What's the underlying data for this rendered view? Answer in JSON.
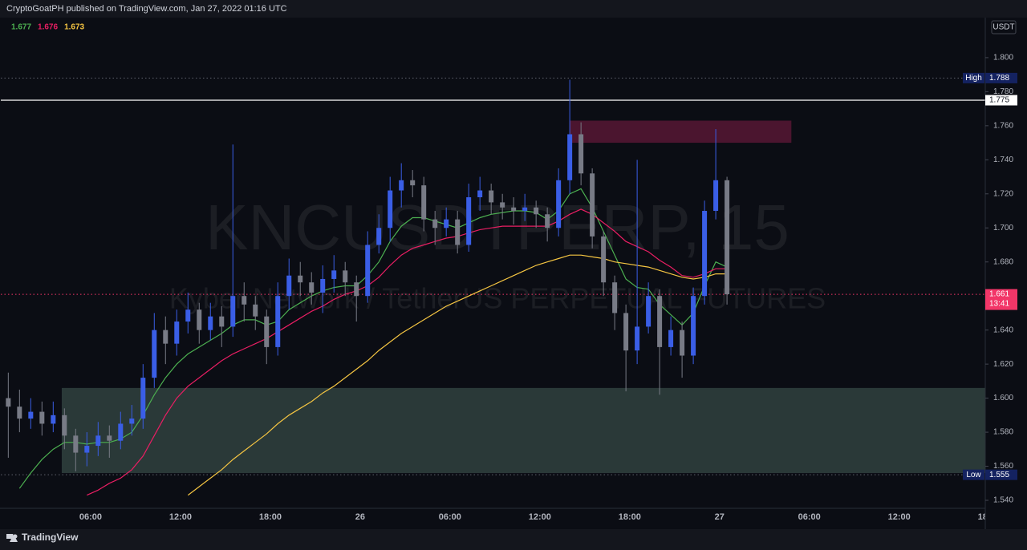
{
  "header": {
    "text": "CryptoGoatPH published on TradingView.com, Jan 27, 2022 01:16 UTC"
  },
  "footer": {
    "brand": "TradingView"
  },
  "chart_data": {
    "type": "candlestick",
    "symbol": "KNCUSDTPERP, 15",
    "description": "Kyber Network / TetherUS PERPETUAL FUTURES",
    "currency": "USDT",
    "up_color": "#3a5ee6",
    "down_color": "#787b86",
    "grid": false,
    "xlim": [
      0,
      65.75
    ],
    "xticks": [
      {
        "value": 6,
        "label": "06:00"
      },
      {
        "value": 12,
        "label": "12:00"
      },
      {
        "value": 18,
        "label": "18:00"
      },
      {
        "value": 24,
        "label": "26"
      },
      {
        "value": 30,
        "label": "06:00"
      },
      {
        "value": 36,
        "label": "12:00"
      },
      {
        "value": 42,
        "label": "18:00"
      },
      {
        "value": 48,
        "label": "27"
      },
      {
        "value": 54,
        "label": "06:00"
      },
      {
        "value": 60,
        "label": "12:00"
      },
      {
        "value": 66,
        "label": "18:00"
      }
    ],
    "ylim": [
      1.5353,
      1.8235
    ],
    "yticks": [
      {
        "value": 1.54,
        "label": "1.540"
      },
      {
        "value": 1.56,
        "label": "1.560"
      },
      {
        "value": 1.58,
        "label": "1.580"
      },
      {
        "value": 1.6,
        "label": "1.600"
      },
      {
        "value": 1.62,
        "label": "1.620"
      },
      {
        "value": 1.64,
        "label": "1.640"
      },
      {
        "value": 1.66,
        "label": "1.660"
      },
      {
        "value": 1.68,
        "label": "1.680"
      },
      {
        "value": 1.7,
        "label": "1.700"
      },
      {
        "value": 1.72,
        "label": "1.720"
      },
      {
        "value": 1.74,
        "label": "1.740"
      },
      {
        "value": 1.76,
        "label": "1.760"
      },
      {
        "value": 1.78,
        "label": "1.780"
      },
      {
        "value": 1.8,
        "label": "1.800"
      }
    ],
    "x": [
      0.5,
      1.25,
      2,
      2.75,
      3.5,
      4.25,
      5,
      5.75,
      6.5,
      7.25,
      8,
      8.75,
      9.5,
      10.25,
      11,
      11.75,
      12.5,
      13.25,
      14,
      14.75,
      15.5,
      16.25,
      17,
      17.75,
      18.5,
      19.25,
      20,
      20.75,
      21.5,
      22.25,
      23,
      23.75,
      24.5,
      25.25,
      26,
      26.75,
      27.5,
      28.25,
      29,
      29.75,
      30.5,
      31.25,
      32,
      32.75,
      33.5,
      34.25,
      35,
      35.75,
      36.5,
      37.25,
      38,
      38.75,
      39.5,
      40.25,
      41,
      41.75,
      42.5,
      43.25,
      44,
      44.75,
      45.5,
      46.25,
      47,
      47.75,
      48.5
    ],
    "open": [
      1.6,
      1.595,
      1.588,
      1.592,
      1.585,
      1.59,
      1.578,
      1.568,
      1.572,
      1.578,
      1.575,
      1.585,
      1.588,
      1.612,
      1.64,
      1.632,
      1.645,
      1.652,
      1.64,
      1.648,
      1.642,
      1.66,
      1.655,
      1.648,
      1.63,
      1.66,
      1.672,
      1.668,
      1.662,
      1.67,
      1.675,
      1.668,
      1.66,
      1.69,
      1.7,
      1.722,
      1.728,
      1.725,
      1.705,
      1.7,
      1.705,
      1.69,
      1.718,
      1.722,
      1.715,
      1.712,
      1.71,
      1.712,
      1.708,
      1.7,
      1.728,
      1.755,
      1.732,
      1.695,
      1.668,
      1.65,
      1.628,
      1.642,
      1.66,
      1.63,
      1.64,
      1.625,
      1.66,
      1.71,
      1.728
    ],
    "high": [
      1.615,
      1.605,
      1.6,
      1.598,
      1.598,
      1.594,
      1.582,
      1.58,
      1.586,
      1.584,
      1.592,
      1.596,
      1.62,
      1.65,
      1.648,
      1.652,
      1.662,
      1.656,
      1.656,
      1.654,
      1.749,
      1.668,
      1.66,
      1.652,
      1.668,
      1.682,
      1.68,
      1.674,
      1.678,
      1.684,
      1.68,
      1.672,
      1.698,
      1.708,
      1.73,
      1.738,
      1.734,
      1.73,
      1.71,
      1.712,
      1.71,
      1.726,
      1.73,
      1.726,
      1.72,
      1.718,
      1.72,
      1.716,
      1.712,
      1.735,
      1.787,
      1.762,
      1.735,
      1.698,
      1.672,
      1.655,
      1.74,
      1.668,
      1.664,
      1.648,
      1.645,
      1.665,
      1.716,
      1.758,
      1.73
    ],
    "low": [
      1.565,
      1.58,
      1.582,
      1.578,
      1.58,
      1.57,
      1.557,
      1.56,
      1.566,
      1.565,
      1.57,
      1.578,
      1.582,
      1.606,
      1.62,
      1.625,
      1.638,
      1.632,
      1.634,
      1.63,
      1.636,
      1.645,
      1.64,
      1.62,
      1.625,
      1.652,
      1.66,
      1.655,
      1.65,
      1.662,
      1.66,
      1.645,
      1.656,
      1.685,
      1.692,
      1.712,
      1.718,
      1.698,
      1.69,
      1.695,
      1.685,
      1.686,
      1.71,
      1.708,
      1.705,
      1.702,
      1.704,
      1.7,
      1.692,
      1.695,
      1.72,
      1.725,
      1.688,
      1.66,
      1.64,
      1.604,
      1.62,
      1.638,
      1.602,
      1.625,
      1.612,
      1.62,
      1.655,
      1.705,
      1.655
    ],
    "close": [
      1.595,
      1.588,
      1.592,
      1.585,
      1.59,
      1.578,
      1.568,
      1.572,
      1.578,
      1.575,
      1.585,
      1.588,
      1.612,
      1.64,
      1.632,
      1.645,
      1.652,
      1.64,
      1.648,
      1.642,
      1.66,
      1.655,
      1.648,
      1.63,
      1.66,
      1.672,
      1.668,
      1.662,
      1.67,
      1.675,
      1.668,
      1.66,
      1.69,
      1.7,
      1.722,
      1.728,
      1.725,
      1.705,
      1.7,
      1.705,
      1.69,
      1.718,
      1.722,
      1.715,
      1.712,
      1.71,
      1.712,
      1.708,
      1.7,
      1.728,
      1.755,
      1.732,
      1.695,
      1.668,
      1.65,
      1.628,
      1.642,
      1.66,
      1.63,
      1.64,
      1.625,
      1.66,
      1.71,
      1.728,
      1.661
    ],
    "series": [
      {
        "color": "#4caf50",
        "values": [
          null,
          1.547,
          1.556,
          1.564,
          1.57,
          1.574,
          1.574,
          1.573,
          1.574,
          1.574,
          1.576,
          1.58,
          1.59,
          1.602,
          1.612,
          1.62,
          1.626,
          1.63,
          1.634,
          1.638,
          1.643,
          1.646,
          1.646,
          1.643,
          1.645,
          1.652,
          1.656,
          1.66,
          1.663,
          1.665,
          1.666,
          1.666,
          1.672,
          1.68,
          1.692,
          1.701,
          1.706,
          1.706,
          1.704,
          1.702,
          1.7,
          1.703,
          1.706,
          1.708,
          1.709,
          1.71,
          1.71,
          1.709,
          1.705,
          1.71,
          1.72,
          1.723,
          1.712,
          1.698,
          1.684,
          1.67,
          1.665,
          1.664,
          1.655,
          1.649,
          1.643,
          1.65,
          1.666,
          1.68,
          1.677
        ]
      },
      {
        "color": "#e91e63",
        "values": [
          null,
          null,
          null,
          null,
          null,
          null,
          null,
          1.543,
          1.546,
          1.55,
          1.553,
          1.558,
          1.566,
          1.578,
          1.59,
          1.6,
          1.607,
          1.612,
          1.617,
          1.622,
          1.626,
          1.629,
          1.632,
          1.635,
          1.639,
          1.643,
          1.647,
          1.651,
          1.654,
          1.658,
          1.661,
          1.663,
          1.666,
          1.671,
          1.678,
          1.684,
          1.688,
          1.69,
          1.692,
          1.694,
          1.695,
          1.697,
          1.699,
          1.7,
          1.701,
          1.701,
          1.701,
          1.701,
          1.701,
          1.704,
          1.708,
          1.711,
          1.708,
          1.703,
          1.698,
          1.692,
          1.689,
          1.686,
          1.681,
          1.677,
          1.672,
          1.671,
          1.673,
          1.676,
          1.676
        ]
      },
      {
        "color": "#f5c542",
        "values": [
          null,
          null,
          null,
          null,
          null,
          null,
          null,
          null,
          null,
          null,
          null,
          null,
          null,
          null,
          null,
          null,
          1.543,
          1.548,
          1.553,
          1.558,
          1.564,
          1.569,
          1.574,
          1.579,
          1.585,
          1.59,
          1.594,
          1.598,
          1.603,
          1.607,
          1.612,
          1.617,
          1.622,
          1.628,
          1.633,
          1.638,
          1.642,
          1.646,
          1.65,
          1.654,
          1.657,
          1.66,
          1.663,
          1.666,
          1.669,
          1.672,
          1.675,
          1.678,
          1.68,
          1.682,
          1.684,
          1.684,
          1.683,
          1.682,
          1.68,
          1.679,
          1.678,
          1.677,
          1.675,
          1.673,
          1.671,
          1.67,
          1.671,
          1.673,
          1.673
        ]
      }
    ],
    "zones": [
      {
        "x": [
          4.07,
          65.75
        ],
        "y": [
          1.556,
          1.606
        ],
        "color": "rgba(80,110,100,0.45)"
      },
      {
        "x": [
          37.98,
          52.8
        ],
        "y": [
          1.75,
          1.763
        ],
        "color": "rgba(130,30,70,0.55)"
      }
    ],
    "price_lines": [
      {
        "name": "High",
        "value": 1.788,
        "color": "#142260",
        "line_color": "#5d606b",
        "style": "dotted"
      },
      {
        "value": 1.775,
        "color": "#ffffff",
        "line_color": "#ffffff",
        "style": "solid"
      },
      {
        "value": 1.661,
        "color": "#f23668",
        "line_color": "#f23668",
        "style": "dotted",
        "countdown": "13:41"
      },
      {
        "name": "Low",
        "value": 1.555,
        "color": "#142260",
        "line_color": "#5d606b",
        "style": "dotted"
      }
    ]
  }
}
